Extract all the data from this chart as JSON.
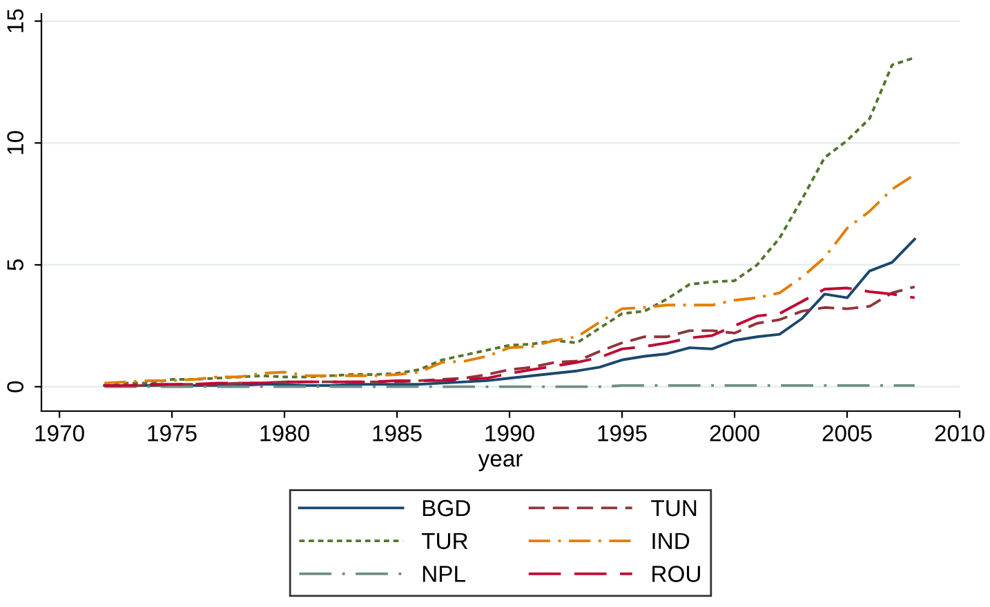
{
  "chart_data": {
    "type": "line",
    "xlabel": "year",
    "x": [
      1972,
      1973,
      1974,
      1975,
      1976,
      1977,
      1978,
      1979,
      1980,
      1981,
      1982,
      1983,
      1984,
      1985,
      1986,
      1987,
      1988,
      1989,
      1990,
      1991,
      1992,
      1993,
      1994,
      1995,
      1996,
      1997,
      1998,
      1999,
      2000,
      2001,
      2002,
      2003,
      2004,
      2005,
      2006,
      2007,
      2008
    ],
    "series": [
      {
        "name": "BGD",
        "color": "#1a476f",
        "line_style": "solid",
        "values": [
          0.05,
          0.05,
          0.05,
          0.05,
          0.05,
          0.05,
          0.05,
          0.1,
          0.1,
          0.05,
          0.05,
          0.1,
          0.1,
          0.1,
          0.1,
          0.15,
          0.2,
          0.25,
          0.35,
          0.45,
          0.55,
          0.65,
          0.8,
          1.1,
          1.25,
          1.35,
          1.6,
          1.55,
          1.9,
          2.05,
          2.15,
          2.8,
          3.8,
          3.65,
          4.75,
          5.1,
          6.05
        ]
      },
      {
        "name": "TUR",
        "color": "#55752f",
        "line_style": "dotted",
        "values": [
          0.1,
          0.15,
          0.15,
          0.3,
          0.3,
          0.35,
          0.4,
          0.45,
          0.4,
          0.4,
          0.45,
          0.5,
          0.5,
          0.55,
          0.7,
          1.1,
          1.3,
          1.5,
          1.7,
          1.75,
          1.9,
          1.8,
          2.4,
          3.0,
          3.1,
          3.6,
          4.2,
          4.3,
          4.35,
          5.0,
          6.1,
          7.7,
          9.4,
          10.1,
          11.0,
          13.2,
          13.5
        ]
      },
      {
        "name": "NPL",
        "color": "#6e8e84",
        "line_style": "longdashdot",
        "values": [
          0.0,
          0.0,
          0.0,
          0.0,
          0.0,
          0.0,
          0.0,
          0.0,
          0.0,
          0.0,
          0.0,
          0.0,
          0.0,
          0.0,
          0.0,
          0.0,
          0.0,
          0.0,
          0.0,
          0.0,
          0.0,
          0.0,
          0.0,
          0.05,
          0.05,
          0.05,
          0.05,
          0.05,
          0.05,
          0.05,
          0.05,
          0.05,
          0.05,
          0.05,
          0.05,
          0.05,
          0.05
        ]
      },
      {
        "name": "TUN",
        "color": "#90353b",
        "line_style": "dashed",
        "values": [
          0.05,
          0.05,
          0.05,
          0.1,
          0.1,
          0.1,
          0.15,
          0.15,
          0.2,
          0.2,
          0.2,
          0.2,
          0.2,
          0.2,
          0.25,
          0.3,
          0.35,
          0.5,
          0.7,
          0.8,
          1.0,
          1.05,
          1.45,
          1.8,
          2.05,
          2.05,
          2.3,
          2.3,
          2.2,
          2.6,
          2.75,
          3.1,
          3.25,
          3.2,
          3.3,
          3.85,
          4.1
        ]
      },
      {
        "name": "IND",
        "color": "#e37e00",
        "line_style": "dashdot",
        "values": [
          0.15,
          0.2,
          0.25,
          0.25,
          0.3,
          0.4,
          0.4,
          0.55,
          0.6,
          0.45,
          0.45,
          0.45,
          0.45,
          0.5,
          0.6,
          1.0,
          1.05,
          1.25,
          1.6,
          1.65,
          1.9,
          2.05,
          2.65,
          3.2,
          3.25,
          3.35,
          3.35,
          3.35,
          3.55,
          3.65,
          3.85,
          4.5,
          5.3,
          6.5,
          7.2,
          8.1,
          8.7
        ]
      },
      {
        "name": "ROU",
        "color": "#c10534",
        "line_style": "longdash",
        "values": [
          0.05,
          0.05,
          0.1,
          0.1,
          0.1,
          0.15,
          0.15,
          0.15,
          0.2,
          0.2,
          0.2,
          0.2,
          0.2,
          0.25,
          0.25,
          0.25,
          0.3,
          0.35,
          0.55,
          0.7,
          0.85,
          1.0,
          1.2,
          1.55,
          1.65,
          1.8,
          2.0,
          2.1,
          2.5,
          2.9,
          3.0,
          3.5,
          4.0,
          4.05,
          3.9,
          3.8,
          3.65
        ]
      }
    ],
    "xlim": [
      1969.2,
      2010
    ],
    "xticks": [
      1970,
      1975,
      1980,
      1985,
      1990,
      1995,
      2000,
      2005,
      2010
    ],
    "ylim": [
      -1,
      15.3
    ],
    "yticks": [
      0,
      5,
      10,
      15
    ],
    "grid": "y",
    "legend": "bottom"
  }
}
